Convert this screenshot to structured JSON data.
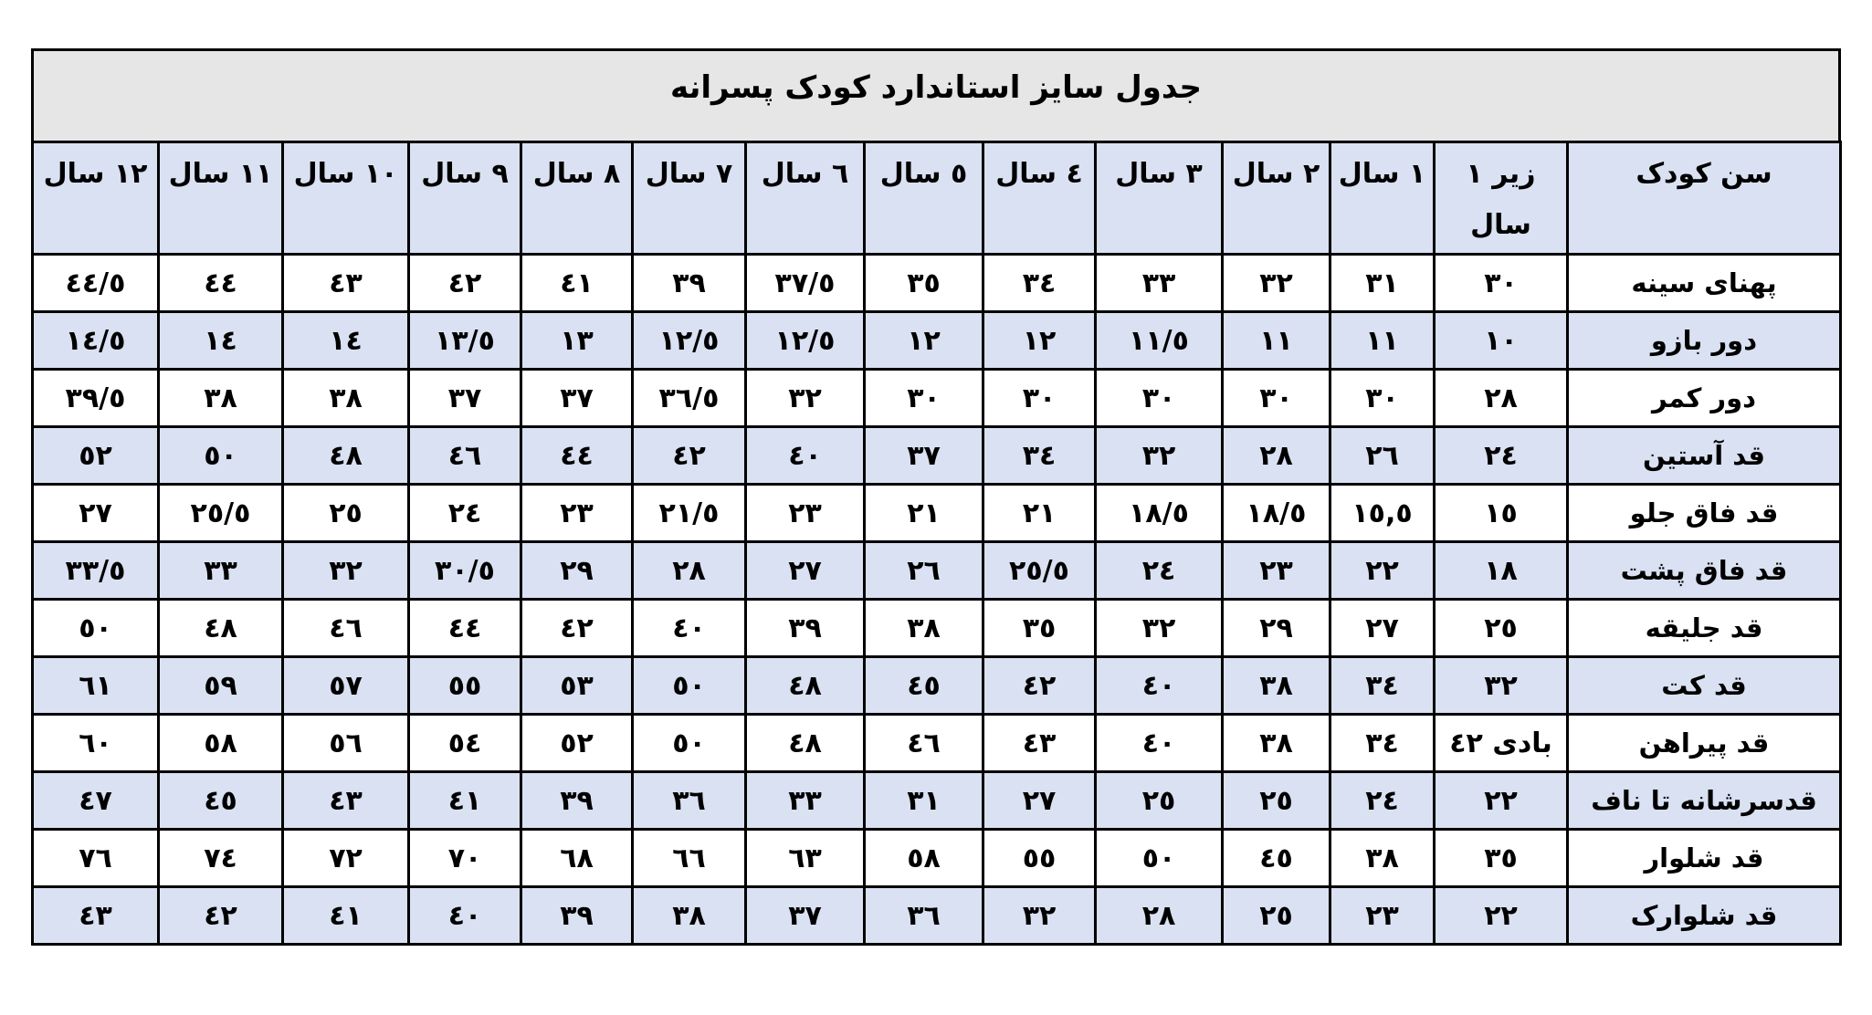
{
  "title": "جدول سایز استاندارد کودک پسرانه",
  "colors": {
    "header_bg": "#d9e1f2",
    "title_bg": "#e7e6e6",
    "alt_row_bg": "#d9e1f2"
  },
  "columns": [
    "سن کودک",
    "زیر ١ سال",
    "١ سال",
    "٢ سال",
    "٣ سال",
    "٤ سال",
    "٥ سال",
    "٦ سال",
    "٧ سال",
    "٨ سال",
    "٩ سال",
    "١٠ سال",
    "١١ سال",
    "١٢ سال"
  ],
  "rows": [
    {
      "label": "پهنای سینه",
      "values": [
        "٣٠",
        "٣١",
        "٣٢",
        "٣٣",
        "٣٤",
        "٣٥",
        "٣٧/٥",
        "٣٩",
        "٤١",
        "٤٢",
        "٤٣",
        "٤٤",
        "٤٤/٥"
      ]
    },
    {
      "label": "دور بازو",
      "values": [
        "١٠",
        "١١",
        "١١",
        "١١/٥",
        "١٢",
        "١٢",
        "١٢/٥",
        "١٢/٥",
        "١٣",
        "١٣/٥",
        "١٤",
        "١٤",
        "١٤/٥"
      ]
    },
    {
      "label": "دور کمر",
      "values": [
        "٢٨",
        "٣٠",
        "٣٠",
        "٣٠",
        "٣٠",
        "٣٠",
        "٣٢",
        "٣٦/٥",
        "٣٧",
        "٣٧",
        "٣٨",
        "٣٨",
        "٣٩/٥"
      ]
    },
    {
      "label": "قد آستین",
      "values": [
        "٢٤",
        "٢٦",
        "٢٨",
        "٣٢",
        "٣٤",
        "٣٧",
        "٤٠",
        "٤٢",
        "٤٤",
        "٤٦",
        "٤٨",
        "٥٠",
        "٥٢"
      ]
    },
    {
      "label": "قد فاق جلو",
      "values": [
        "١٥",
        "١٥,٥",
        "١٨/٥",
        "١٨/٥",
        "٢١",
        "٢١",
        "٢٣",
        "٢١/٥",
        "٢٣",
        "٢٤",
        "٢٥",
        "٢٥/٥",
        "٢٧"
      ]
    },
    {
      "label": "قد فاق پشت",
      "values": [
        "١٨",
        "٢٢",
        "٢٣",
        "٢٤",
        "٢٥/٥",
        "٢٦",
        "٢٧",
        "٢٨",
        "٢٩",
        "٣٠/٥",
        "٣٢",
        "٣٣",
        "٣٣/٥"
      ]
    },
    {
      "label": "قد جلیقه",
      "values": [
        "٢٥",
        "٢٧",
        "٢٩",
        "٣٢",
        "٣٥",
        "٣٨",
        "٣٩",
        "٤٠",
        "٤٢",
        "٤٤",
        "٤٦",
        "٤٨",
        "٥٠"
      ]
    },
    {
      "label": "قد کت",
      "values": [
        "٣٢",
        "٣٤",
        "٣٨",
        "٤٠",
        "٤٢",
        "٤٥",
        "٤٨",
        "٥٠",
        "٥٣",
        "٥٥",
        "٥٧",
        "٥٩",
        "٦١"
      ]
    },
    {
      "label": "قد پیراهن",
      "values": [
        "بادی ٤٢",
        "٣٤",
        "٣٨",
        "٤٠",
        "٤٣",
        "٤٦",
        "٤٨",
        "٥٠",
        "٥٢",
        "٥٤",
        "٥٦",
        "٥٨",
        "٦٠"
      ]
    },
    {
      "label": "قدسرشانه تا ناف",
      "values": [
        "٢٢",
        "٢٤",
        "٢٥",
        "٢٥",
        "٢٧",
        "٣١",
        "٣٣",
        "٣٦",
        "٣٩",
        "٤١",
        "٤٣",
        "٤٥",
        "٤٧"
      ]
    },
    {
      "label": "قد شلوار",
      "values": [
        "٣٥",
        "٣٨",
        "٤٥",
        "٥٠",
        "٥٥",
        "٥٨",
        "٦٣",
        "٦٦",
        "٦٨",
        "٧٠",
        "٧٢",
        "٧٤",
        "٧٦"
      ]
    },
    {
      "label": "قد شلوارک",
      "values": [
        "٢٢",
        "٢٣",
        "٢٥",
        "٢٨",
        "٣٢",
        "٣٦",
        "٣٧",
        "٣٨",
        "٣٩",
        "٤٠",
        "٤١",
        "٤٢",
        "٤٣"
      ]
    }
  ]
}
